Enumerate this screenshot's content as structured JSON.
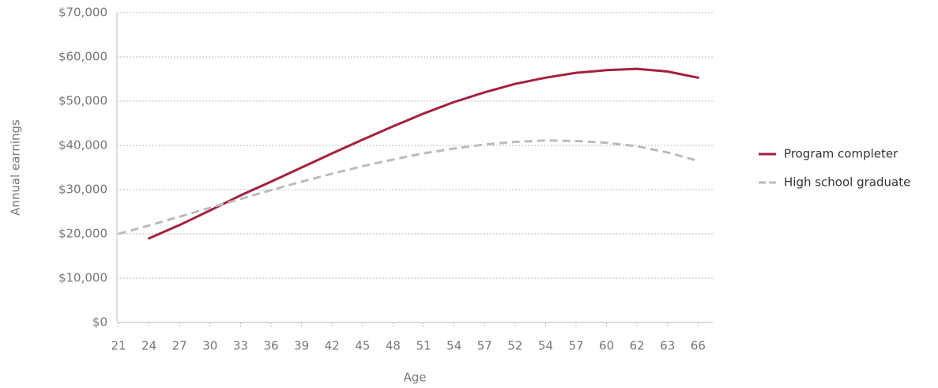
{
  "chart_data": {
    "type": "line",
    "x_label": "Age",
    "y_label": "Annual earnings",
    "categories": [
      "21",
      "24",
      "27",
      "30",
      "33",
      "36",
      "39",
      "42",
      "45",
      "48",
      "51",
      "54",
      "57",
      "52",
      "54",
      "57",
      "60",
      "62",
      "63",
      "66"
    ],
    "series": [
      {
        "name": "Program completer",
        "color": "#a3223a",
        "dashed": false,
        "values": [
          null,
          19000,
          22000,
          25300,
          28700,
          31800,
          35000,
          38200,
          41300,
          44300,
          47200,
          49800,
          52000,
          53900,
          55300,
          56400,
          57000,
          57300,
          56700,
          55300
        ]
      },
      {
        "name": "High school graduate",
        "color": "#bbbbbb",
        "dashed": true,
        "values": [
          20000,
          21900,
          23900,
          25900,
          27900,
          29900,
          31800,
          33600,
          35300,
          36800,
          38200,
          39300,
          40200,
          40800,
          41100,
          41000,
          40600,
          39800,
          38400,
          36500
        ]
      }
    ],
    "ylim": [
      0,
      70000
    ],
    "yticks": [
      {
        "value": 0,
        "label": "$0"
      },
      {
        "value": 10000,
        "label": "$10,000"
      },
      {
        "value": 20000,
        "label": "$20,000"
      },
      {
        "value": 30000,
        "label": "$30,000"
      },
      {
        "value": 40000,
        "label": "$40,000"
      },
      {
        "value": 50000,
        "label": "$50,000"
      },
      {
        "value": 60000,
        "label": "$60,000"
      },
      {
        "value": 70000,
        "label": "$70,000"
      }
    ],
    "grid": true,
    "legend": "right"
  }
}
